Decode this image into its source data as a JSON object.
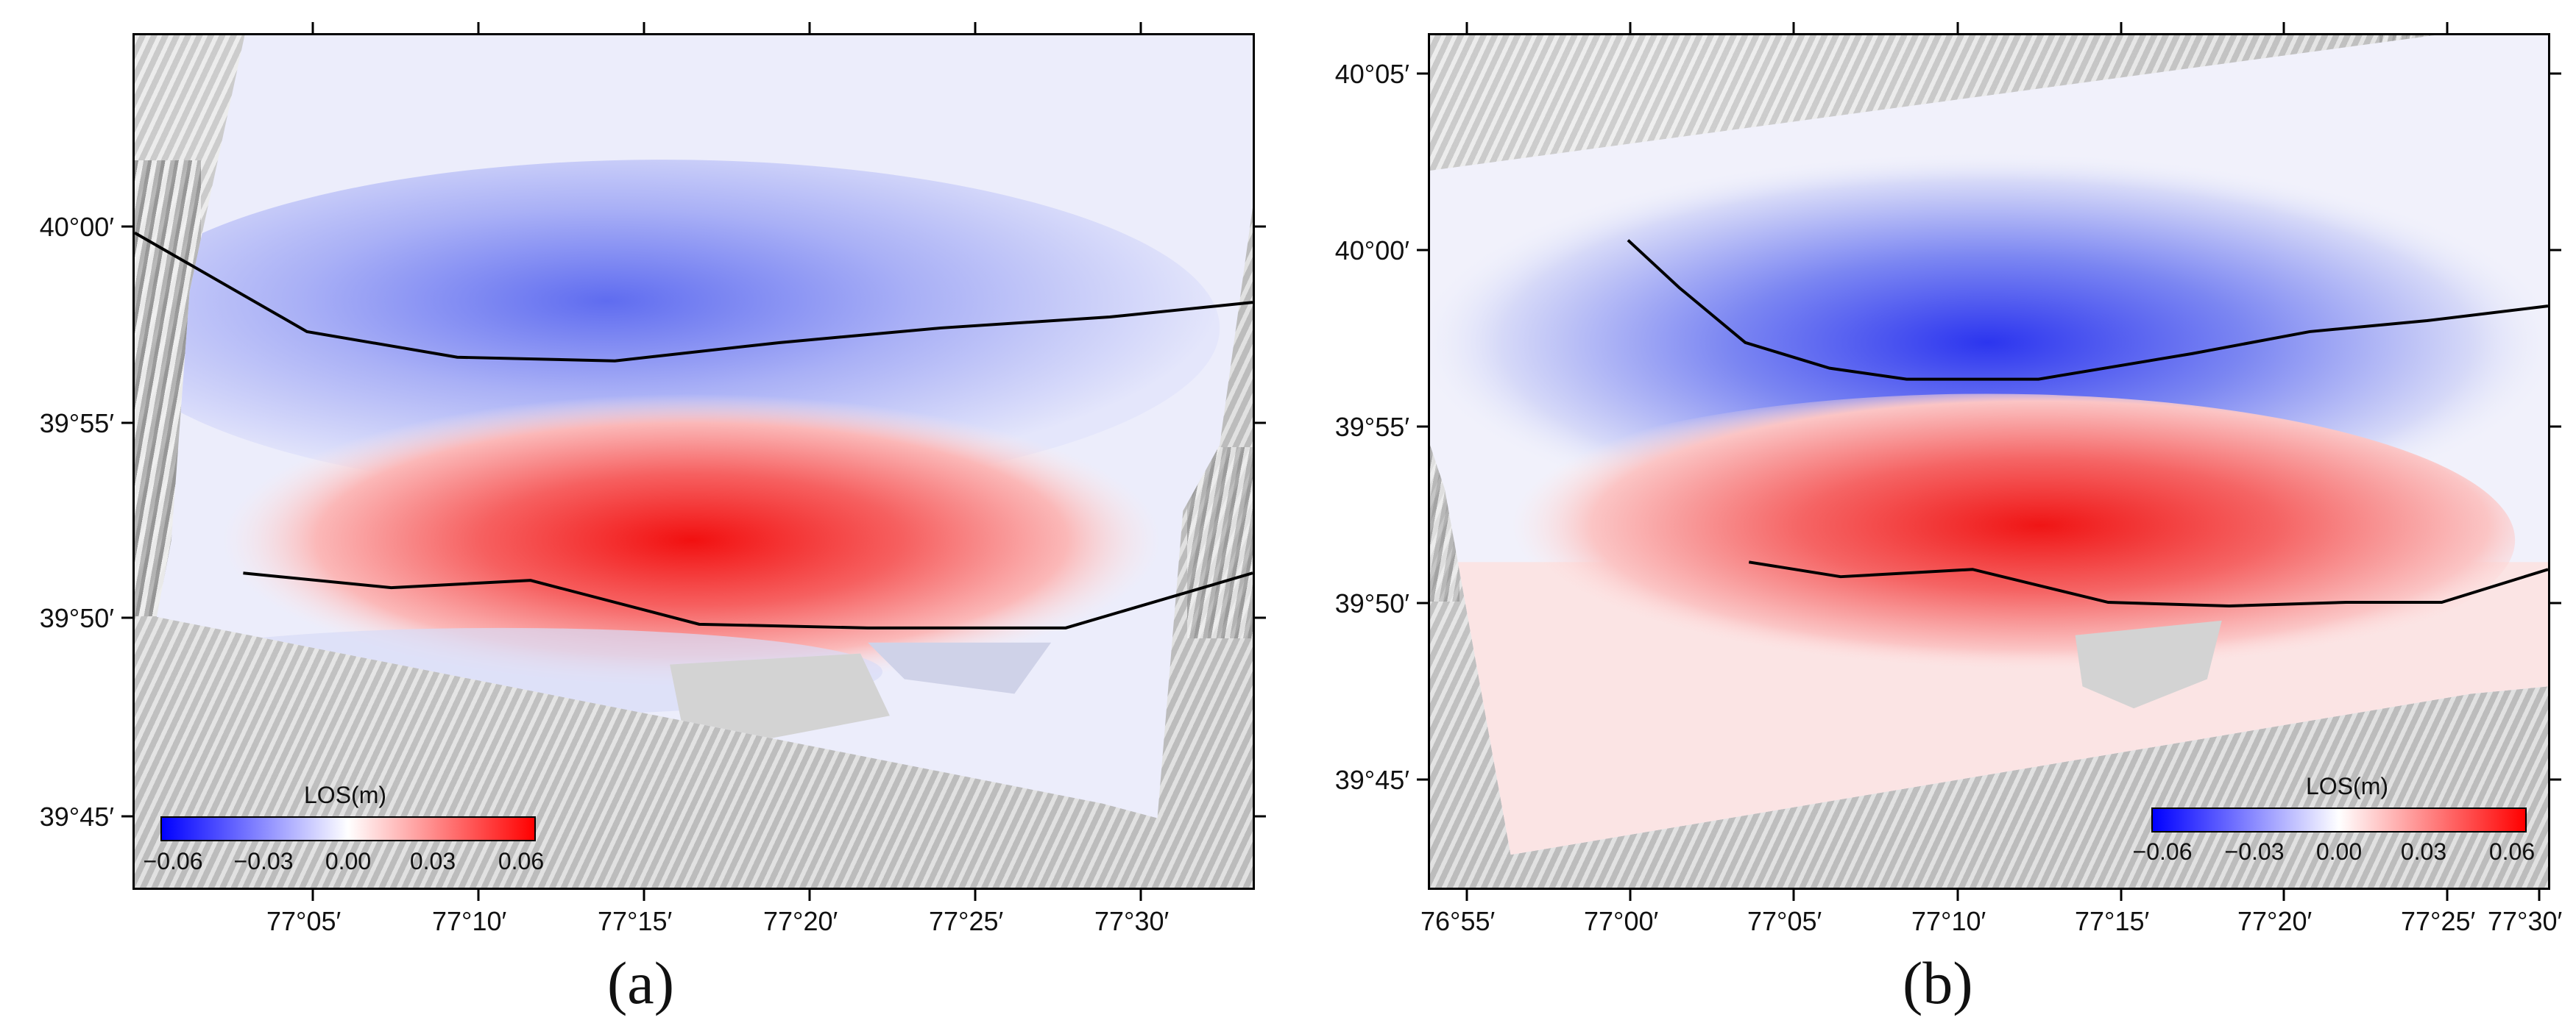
{
  "colors": {
    "negative": "#0000ff",
    "neutral": "#ffffff",
    "positive": "#ff0000",
    "fault": "#000000",
    "relief": "#cfcfcf"
  },
  "panels": [
    {
      "label": "(a)",
      "colorbar": {
        "title": "LOS(m)",
        "ticks": [
          "−0.06",
          "−0.03",
          "0.00",
          "0.03",
          "0.06"
        ]
      },
      "x_ticks": [
        "77°05′",
        "77°10′",
        "77°15′",
        "77°20′",
        "77°25′",
        "77°30′"
      ],
      "y_ticks": [
        "40°00′",
        "39°55′",
        "39°50′",
        "39°45′"
      ]
    },
    {
      "label": "(b)",
      "colorbar": {
        "title": "LOS(m)",
        "ticks": [
          "−0.06",
          "−0.03",
          "0.00",
          "0.03",
          "0.06"
        ]
      },
      "x_ticks": [
        "76°55′",
        "77°00′",
        "77°05′",
        "77°10′",
        "77°15′",
        "77°20′",
        "77°25′",
        "77°30′"
      ],
      "y_ticks": [
        "40°05′",
        "40°00′",
        "39°55′",
        "39°50′",
        "39°45′"
      ]
    }
  ]
}
